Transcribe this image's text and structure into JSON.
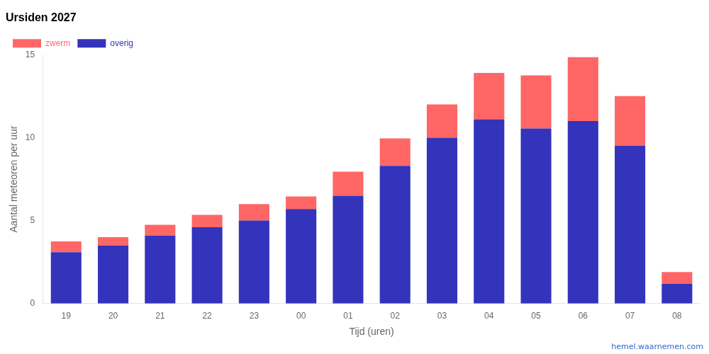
{
  "chart_data": {
    "type": "bar",
    "title": "Ursiden 2027",
    "x_label": "Tijd (uren)",
    "y_label": "Aantal meteoren per uur",
    "annotations": [
      "hemel.waarnemen.com"
    ],
    "categories": [
      "19",
      "20",
      "21",
      "22",
      "23",
      "00",
      "01",
      "02",
      "03",
      "04",
      "05",
      "06",
      "07",
      "08"
    ],
    "series": [
      {
        "name": "overig",
        "color": "#3333BB",
        "values": [
          3.1,
          3.5,
          4.1,
          4.6,
          5.0,
          5.7,
          6.5,
          8.3,
          10.0,
          11.1,
          10.55,
          11.0,
          9.5,
          1.2
        ]
      },
      {
        "name": "zwerm",
        "color": "#FF6666",
        "values": [
          0.65,
          0.5,
          0.65,
          0.75,
          1.0,
          0.75,
          1.45,
          1.65,
          2.0,
          2.8,
          3.2,
          3.85,
          3.0,
          0.7
        ]
      }
    ],
    "stacked": true,
    "ylim": [
      0,
      15
    ],
    "yticks": [
      0,
      5,
      10,
      15
    ],
    "grid": false,
    "legend": "upper left"
  }
}
